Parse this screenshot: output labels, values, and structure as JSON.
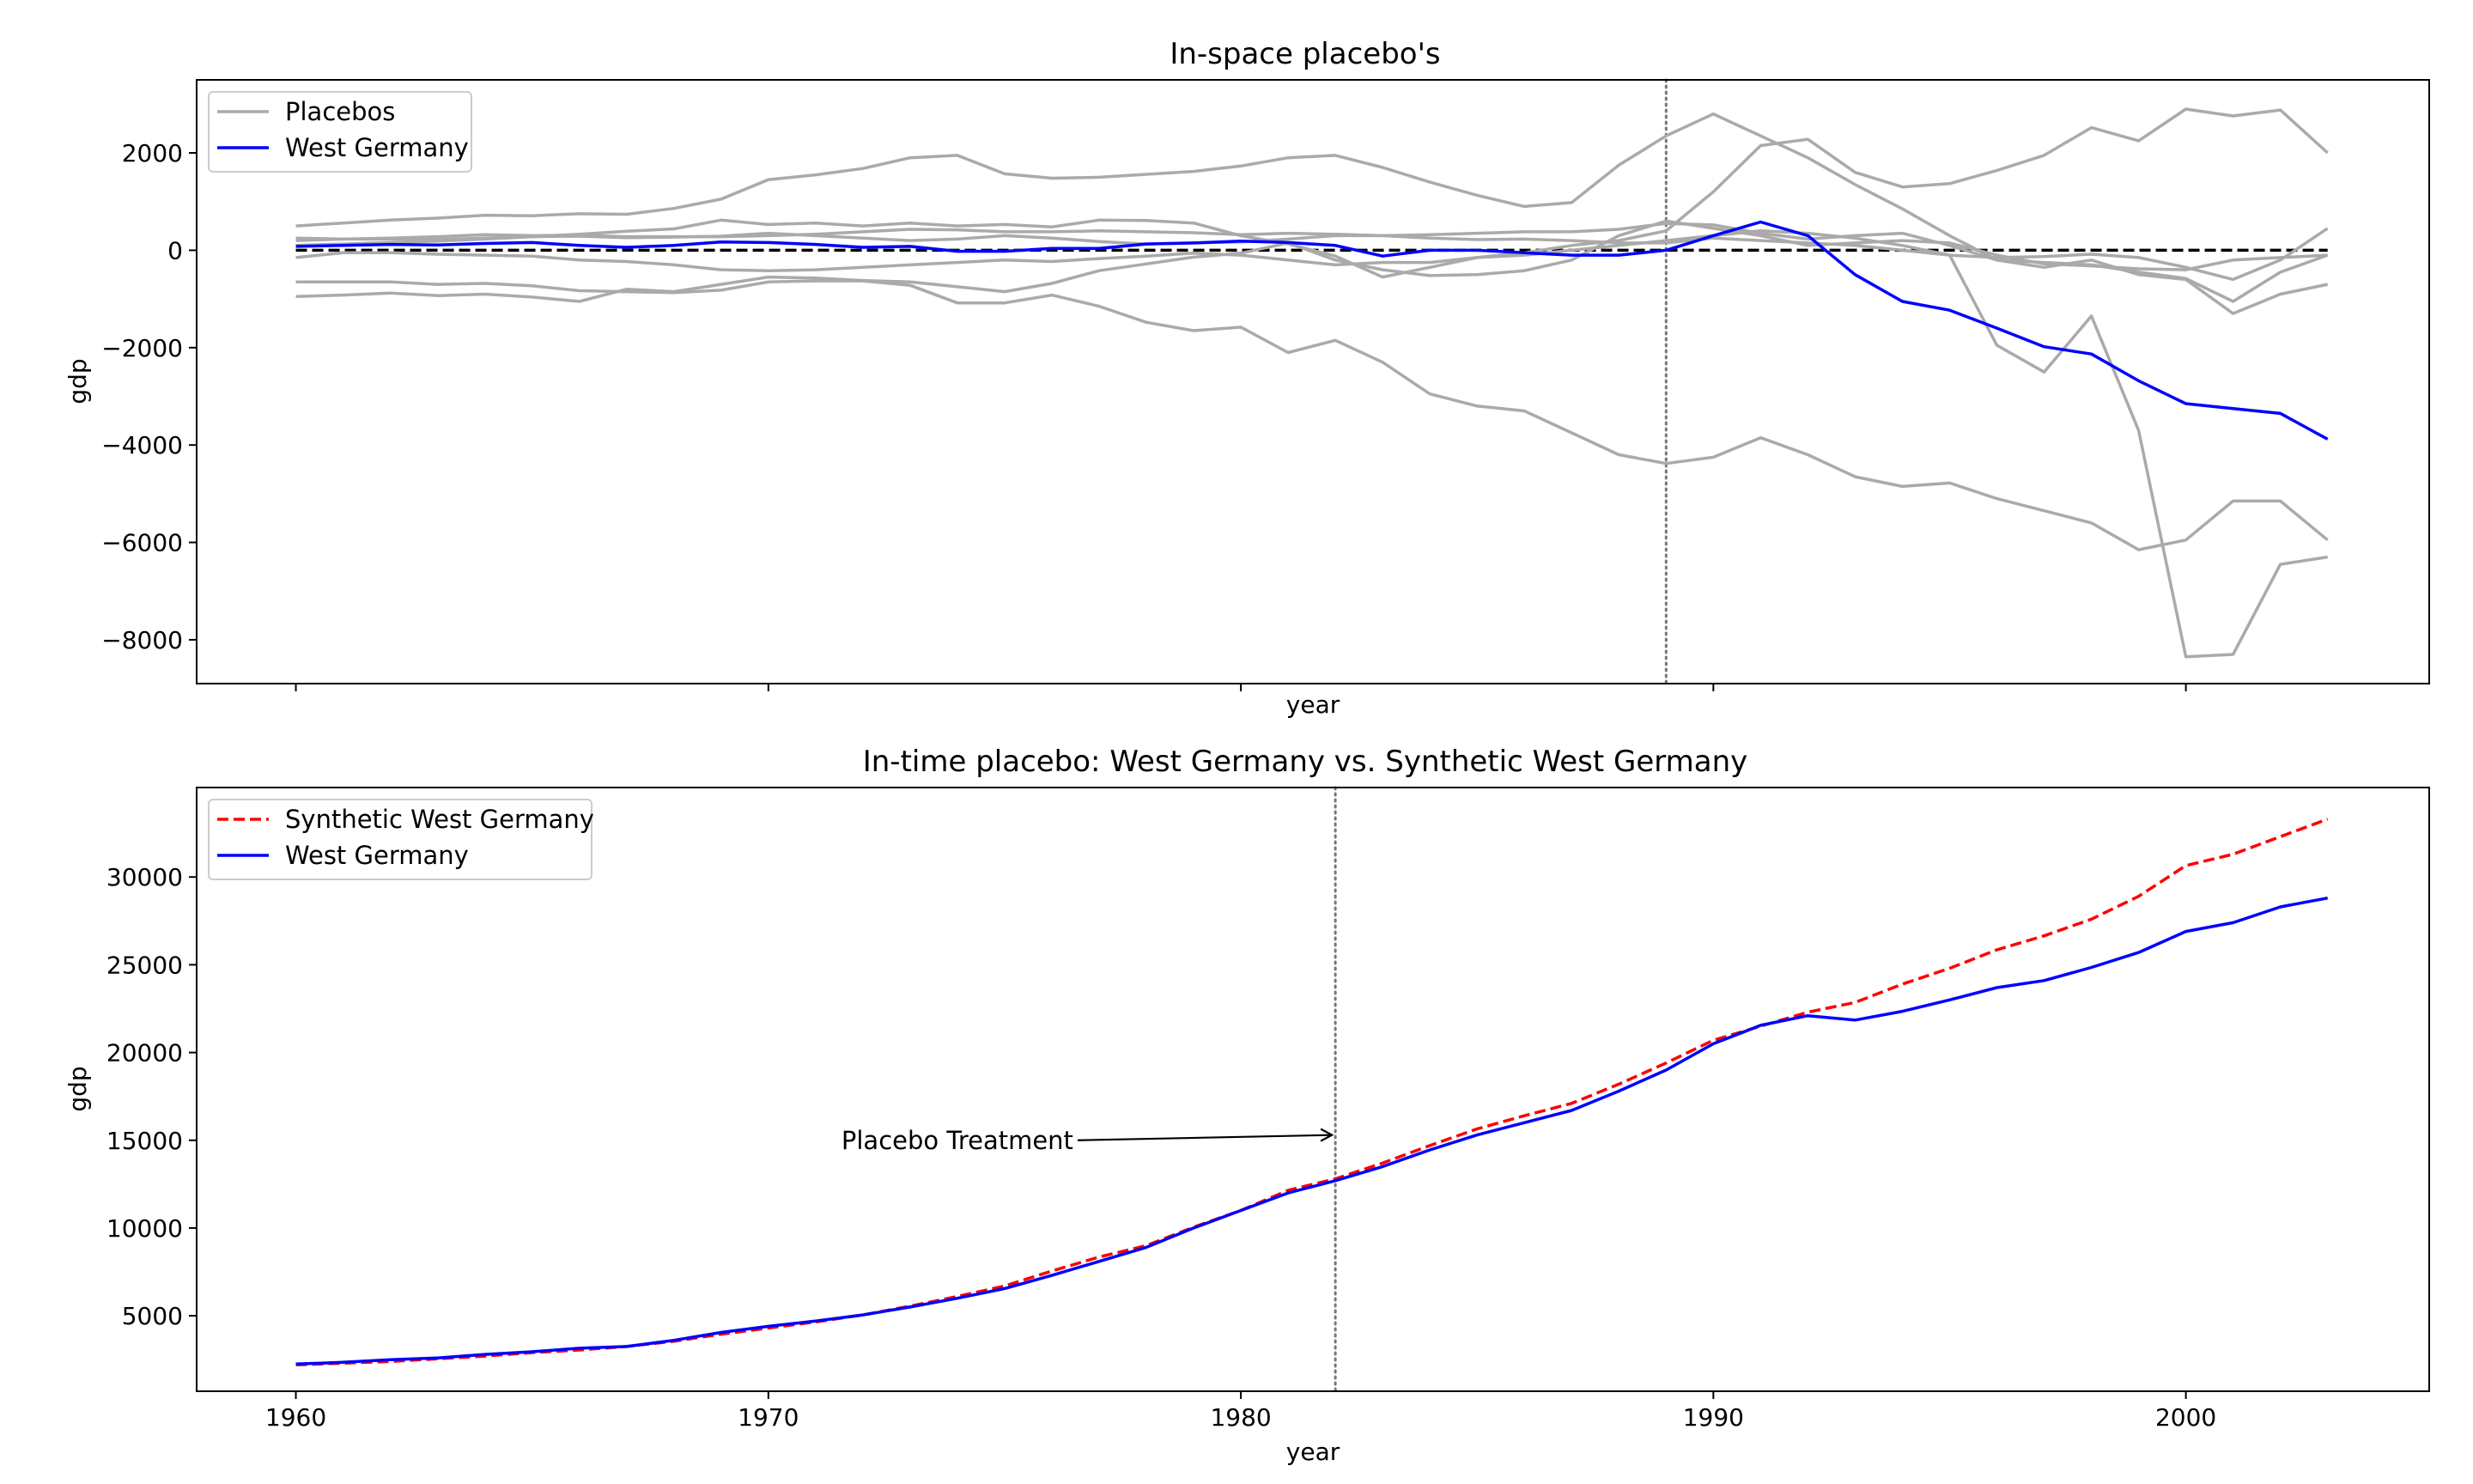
{
  "chart_data": [
    {
      "type": "line",
      "title": "In-space placebo's",
      "xlabel": "year",
      "ylabel": "gdp",
      "xlim": [
        1957.9,
        2005.15
      ],
      "ylim": [
        -8900,
        3500
      ],
      "yticks": [
        2000,
        0,
        -2000,
        -4000,
        -6000,
        -8000
      ],
      "ytick_labels": [
        "2000",
        "0",
        "−2000",
        "−4000",
        "−6000",
        "−8000"
      ],
      "xticks": [
        1960,
        1970,
        1980,
        1990,
        2000
      ],
      "show_xtick_labels": false,
      "treatment_year": 1989,
      "zero_line": 0,
      "legend": {
        "placement": "upper-left",
        "entries": [
          {
            "label": "Placebos",
            "color": "#aaaaaa",
            "style": "solid"
          },
          {
            "label": "West Germany",
            "color": "#0000ff",
            "style": "solid"
          }
        ]
      },
      "x": [
        1960,
        1961,
        1962,
        1963,
        1964,
        1965,
        1966,
        1967,
        1968,
        1969,
        1970,
        1971,
        1972,
        1973,
        1974,
        1975,
        1976,
        1977,
        1978,
        1979,
        1980,
        1981,
        1982,
        1983,
        1984,
        1985,
        1986,
        1987,
        1988,
        1989,
        1990,
        1991,
        1992,
        1993,
        1994,
        1995,
        1996,
        1997,
        1998,
        1999,
        2000,
        2001,
        2002,
        2003
      ],
      "series": [
        {
          "name": "Placebos",
          "color": "#aaaaaa",
          "values": [
            500,
            560,
            620,
            660,
            720,
            710,
            750,
            740,
            860,
            1050,
            1450,
            1550,
            1680,
            1900,
            1950,
            1570,
            1480,
            1500,
            1560,
            1620,
            1730,
            1900,
            1950,
            1700,
            1400,
            1130,
            900,
            980,
            1750,
            2350,
            2800,
            2350,
            1900,
            1350,
            850,
            300,
            -200,
            -350,
            -200,
            -500,
            -600,
            -1300,
            -900,
            -700
          ]
        },
        {
          "name": "Placebos",
          "color": "#aaaaaa",
          "values": [
            200,
            230,
            250,
            280,
            320,
            300,
            310,
            280,
            280,
            280,
            300,
            330,
            380,
            430,
            420,
            380,
            380,
            400,
            380,
            360,
            320,
            350,
            330,
            300,
            320,
            350,
            380,
            380,
            430,
            550,
            520,
            350,
            230,
            300,
            350,
            100,
            -200,
            -250,
            -300,
            -450,
            -580,
            -1050,
            -450,
            -100
          ]
        },
        {
          "name": "Placebos",
          "color": "#aaaaaa",
          "values": [
            100,
            130,
            160,
            190,
            230,
            280,
            330,
            390,
            440,
            620,
            530,
            560,
            500,
            560,
            500,
            530,
            480,
            620,
            610,
            560,
            300,
            130,
            -120,
            -550,
            -350,
            -150,
            -50,
            100,
            200,
            400,
            1200,
            2150,
            2280,
            1600,
            1300,
            1370,
            1640,
            1950,
            2520,
            2250,
            2900,
            2760,
            2880,
            2000
          ]
        },
        {
          "name": "Placebos",
          "color": "#aaaaaa",
          "values": [
            -950,
            -920,
            -880,
            -930,
            -900,
            -960,
            -1050,
            -800,
            -850,
            -700,
            -550,
            -570,
            -620,
            -650,
            -750,
            -850,
            -680,
            -420,
            -280,
            -140,
            -60,
            150,
            -200,
            -400,
            -520,
            -500,
            -420,
            -200,
            300,
            600,
            450,
            300,
            100,
            150,
            200,
            150,
            -100,
            -280,
            -320,
            -380,
            -400,
            -200,
            -150,
            -100
          ]
        },
        {
          "name": "Placebos",
          "color": "#aaaaaa",
          "values": [
            -650,
            -650,
            -650,
            -700,
            -680,
            -730,
            -830,
            -850,
            -870,
            -820,
            -650,
            -630,
            -630,
            -720,
            -1080,
            -1080,
            -920,
            -1150,
            -1480,
            -1650,
            -1580,
            -2100,
            -1850,
            -2300,
            -2950,
            -3200,
            -3300,
            -3750,
            -4200,
            -4380,
            -4250,
            -3850,
            -4200,
            -4650,
            -4850,
            -4780,
            -5100,
            -5350,
            -5600,
            -6150,
            -5950,
            -5150,
            -5150,
            -5950
          ]
        },
        {
          "name": "Placebos",
          "color": "#aaaaaa",
          "values": [
            -150,
            -50,
            -50,
            -80,
            -100,
            -120,
            -200,
            -230,
            -300,
            -400,
            -420,
            -400,
            -350,
            -300,
            -250,
            -200,
            -230,
            -170,
            -120,
            -60,
            -100,
            -200,
            -300,
            -250,
            -250,
            -150,
            -100,
            0,
            100,
            200,
            300,
            400,
            350,
            250,
            100,
            -100,
            -1950,
            -2500,
            -1350,
            -3700,
            -8350,
            -8300,
            -6450,
            -6300
          ]
        },
        {
          "name": "Placebos",
          "color": "#aaaaaa",
          "values": [
            250,
            230,
            230,
            220,
            250,
            280,
            290,
            260,
            270,
            290,
            350,
            300,
            250,
            200,
            230,
            300,
            250,
            180,
            130,
            150,
            170,
            230,
            300,
            300,
            250,
            220,
            230,
            200,
            150,
            150,
            250,
            200,
            150,
            100,
            0,
            -100,
            -150,
            -130,
            -80,
            -150,
            -350,
            -600,
            -200,
            450
          ]
        },
        {
          "name": "West Germany",
          "color": "#0000ff",
          "values": [
            80,
            100,
            120,
            110,
            140,
            160,
            100,
            60,
            100,
            170,
            160,
            120,
            60,
            80,
            -20,
            -20,
            40,
            40,
            130,
            150,
            190,
            160,
            100,
            -120,
            0,
            0,
            -50,
            -100,
            -100,
            0,
            300,
            580,
            300,
            -500,
            -1050,
            -1230,
            -1600,
            -1980,
            -2130,
            -2680,
            -3150,
            -3250,
            -3350,
            -3880
          ]
        }
      ]
    },
    {
      "type": "line",
      "title": "In-time placebo: West Germany vs. Synthetic West Germany",
      "xlabel": "year",
      "ylabel": "gdp",
      "xlim": [
        1957.9,
        2005.15
      ],
      "ylim": [
        700,
        35100
      ],
      "yticks": [
        30000,
        25000,
        20000,
        15000,
        10000,
        5000
      ],
      "ytick_labels": [
        "30000",
        "25000",
        "20000",
        "15000",
        "10000",
        "5000"
      ],
      "xticks": [
        1960,
        1970,
        1980,
        1990,
        2000
      ],
      "xtick_labels": [
        "1960",
        "1970",
        "1980",
        "1990",
        "2000"
      ],
      "treatment_year": 1982,
      "annotation": {
        "text": "Placebo Treatment",
        "text_x": 1974,
        "text_y": 15000,
        "arrow_to_x": 1982,
        "arrow_to_y": 15300
      },
      "legend": {
        "placement": "upper-left",
        "entries": [
          {
            "label": "Synthetic West Germany",
            "color": "#ff0000",
            "style": "dashed"
          },
          {
            "label": "West Germany",
            "color": "#0000ff",
            "style": "solid"
          }
        ]
      },
      "x": [
        1960,
        1961,
        1962,
        1963,
        1964,
        1965,
        1966,
        1967,
        1968,
        1969,
        1970,
        1971,
        1972,
        1973,
        1974,
        1975,
        1976,
        1977,
        1978,
        1979,
        1980,
        1981,
        1982,
        1983,
        1984,
        1985,
        1986,
        1987,
        1988,
        1989,
        1990,
        1991,
        1992,
        1993,
        1994,
        1995,
        1996,
        1997,
        1998,
        1999,
        2000,
        2001,
        2002,
        2003
      ],
      "series": [
        {
          "name": "Synthetic West Germany",
          "color": "#ff0000",
          "dashed": true,
          "values": [
            2200,
            2300,
            2400,
            2550,
            2700,
            2900,
            3050,
            3250,
            3550,
            3950,
            4300,
            4650,
            5050,
            5550,
            6100,
            6700,
            7550,
            8350,
            9000,
            10050,
            11000,
            12150,
            12800,
            13700,
            14700,
            15650,
            16400,
            17100,
            18200,
            19400,
            20700,
            21500,
            22300,
            22850,
            23900,
            24800,
            25850,
            26650,
            27600,
            28900,
            30650,
            31300,
            32300,
            33300
          ]
        },
        {
          "name": "West Germany",
          "color": "#0000ff",
          "dashed": false,
          "values": [
            2250,
            2350,
            2500,
            2600,
            2800,
            2950,
            3150,
            3250,
            3600,
            4050,
            4400,
            4700,
            5050,
            5500,
            6000,
            6550,
            7300,
            8100,
            8900,
            10000,
            11000,
            12000,
            12700,
            13500,
            14450,
            15300,
            16000,
            16700,
            17800,
            19000,
            20500,
            21550,
            22100,
            21850,
            22350,
            23000,
            23700,
            24100,
            24850,
            25700,
            26900,
            27400,
            28300,
            28800
          ]
        }
      ]
    }
  ]
}
